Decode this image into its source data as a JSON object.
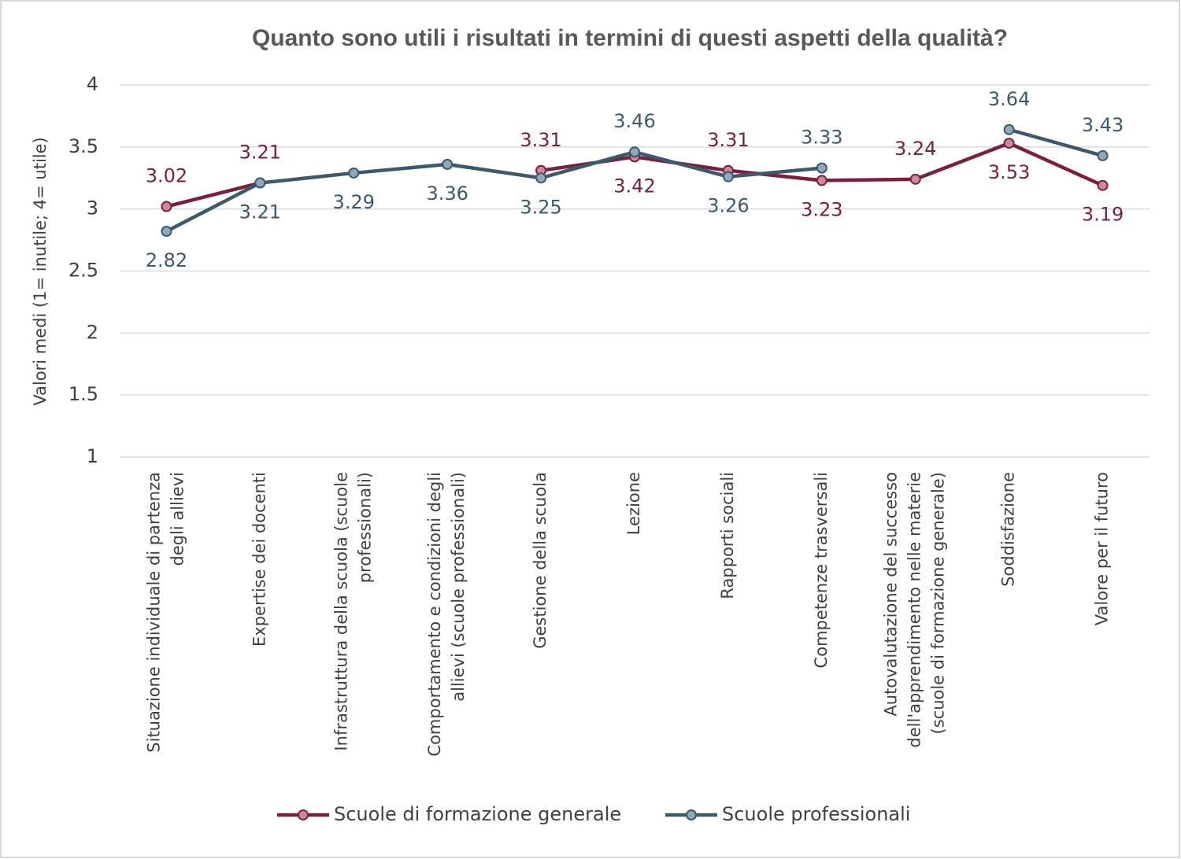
{
  "chart_data": {
    "type": "line",
    "title": "Quanto sono utili i risultati in termini di questi aspetti della qualità?",
    "y_label": "Valori medi (1= inutile; 4= utile)",
    "categories": [
      "Situazione individuale di partenza degli allievi",
      "Expertise dei docenti",
      "Infrastruttura della scuola (scuole professionali)",
      "Comportamento e condizioni degli allievi (scuole professionali)",
      "Gestione della scuola",
      "Lezione",
      "Rapporti sociali",
      "Competenze trasversali",
      "Autovalutazione del successo dell'apprendimento nelle materie (scuole di formazione generale)",
      "Soddisfazione",
      "Valore per il futuro"
    ],
    "series": [
      {
        "name": "Scuole di formazione generale",
        "color": "#7a1f3d",
        "values": [
          3.02,
          3.21,
          null,
          null,
          3.31,
          3.42,
          3.31,
          3.23,
          3.24,
          3.53,
          3.19
        ]
      },
      {
        "name": "Scuole professionali",
        "color": "#3d596c",
        "values": [
          2.82,
          3.21,
          3.29,
          3.36,
          3.25,
          3.46,
          3.26,
          3.33,
          null,
          3.64,
          3.43
        ]
      }
    ],
    "ylim": [
      1,
      4
    ],
    "yticks": [
      1,
      1.5,
      2,
      2.5,
      3,
      3.5,
      4
    ],
    "grid": true,
    "legend": "bottom"
  }
}
